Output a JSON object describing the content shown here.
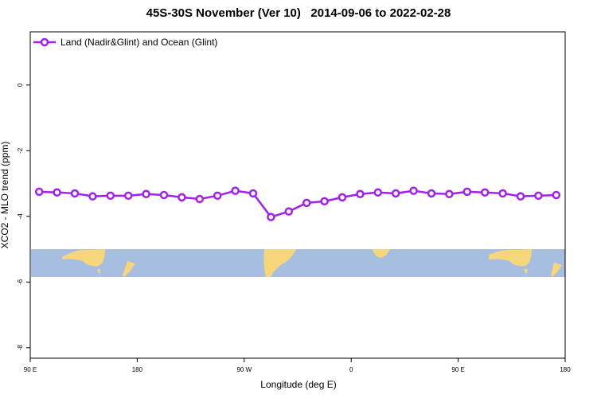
{
  "chart_data": {
    "type": "line",
    "title": "45S-30S November (Ver 10)   2014-09-06 to 2022-02-28",
    "x_label": "Longitude (deg E)",
    "y_label": "XCO2 - MLO trend (ppm)",
    "xlim": [
      90,
      540
    ],
    "ylim": [
      -8.32,
      1.62
    ],
    "xticks": [
      {
        "value": 90,
        "label": "90 E"
      },
      180,
      {
        "value": 270,
        "label": "90 W"
      },
      {
        "value": 360,
        "label": "0"
      },
      {
        "value": 450,
        "label": "90 E"
      },
      {
        "value": 540,
        "label": "180"
      }
    ],
    "yticks": [
      0,
      -2,
      -4,
      -6,
      -8
    ],
    "legend_position": "top-left",
    "x": [
      97.5,
      112.5,
      127.5,
      142.5,
      157.5,
      172.5,
      187.5,
      202.5,
      217.5,
      232.5,
      247.5,
      262.5,
      277.5,
      292.5,
      307.5,
      322.5,
      337.5,
      352.5,
      367.5,
      382.5,
      397.5,
      412.5,
      427.5,
      442.5,
      457.5,
      472.5,
      487.5,
      502.5,
      517.5,
      532.5
    ],
    "series": [
      {
        "name": "Land (Nadir&Glint) and Ocean (Glint)",
        "color": "#a020f0",
        "values": [
          -3.25,
          -3.27,
          -3.3,
          -3.39,
          -3.37,
          -3.37,
          -3.32,
          -3.35,
          -3.42,
          -3.47,
          -3.37,
          -3.22,
          -3.3,
          -4.02,
          -3.85,
          -3.59,
          -3.54,
          -3.42,
          -3.32,
          -3.27,
          -3.3,
          -3.22,
          -3.3,
          -3.32,
          -3.25,
          -3.27,
          -3.3,
          -3.39,
          -3.37,
          -3.35
        ]
      }
    ]
  }
}
